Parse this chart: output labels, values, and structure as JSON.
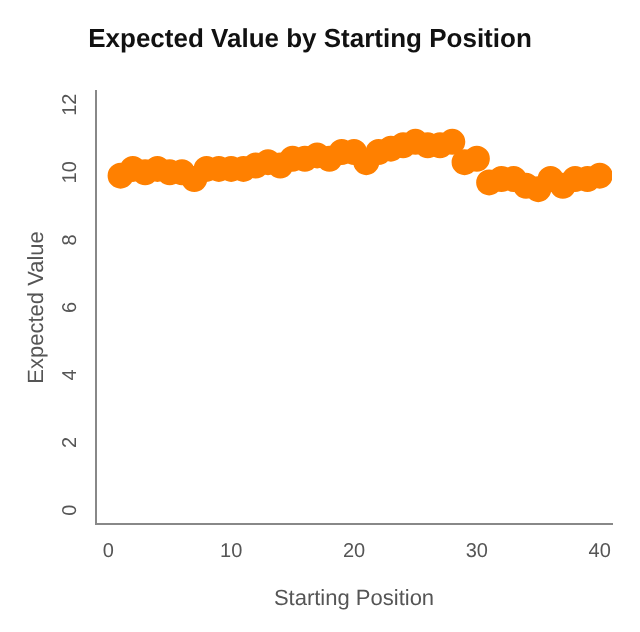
{
  "chart_data": {
    "type": "scatter",
    "title": "Expected Value by Starting Position",
    "xlabel": "Starting Position",
    "ylabel": "Expected Value",
    "x": [
      1,
      2,
      3,
      4,
      5,
      6,
      7,
      8,
      9,
      10,
      11,
      12,
      13,
      14,
      15,
      16,
      17,
      18,
      19,
      20,
      21,
      22,
      23,
      24,
      25,
      26,
      27,
      28,
      29,
      30,
      31,
      32,
      33,
      34,
      35,
      36,
      37,
      38,
      39,
      40
    ],
    "series": [
      {
        "color": "#ff8000",
        "values": [
          9.9,
          10.1,
          10.0,
          10.1,
          10.0,
          10.0,
          9.8,
          10.1,
          10.1,
          10.1,
          10.1,
          10.2,
          10.3,
          10.2,
          10.4,
          10.4,
          10.5,
          10.4,
          10.6,
          10.6,
          10.3,
          10.6,
          10.7,
          10.8,
          10.9,
          10.8,
          10.8,
          10.9,
          10.3,
          10.4,
          9.7,
          9.8,
          9.8,
          9.6,
          9.5,
          9.8,
          9.6,
          9.8,
          9.8,
          9.9
        ]
      }
    ],
    "xlim": [
      -1,
      41
    ],
    "ylim": [
      -0.4,
      12.4
    ],
    "xticks": [
      0,
      10,
      20,
      30,
      40
    ],
    "yticks": [
      0,
      2,
      4,
      6,
      8,
      10,
      12
    ],
    "marker": "circle",
    "grid": false,
    "legend": false
  }
}
